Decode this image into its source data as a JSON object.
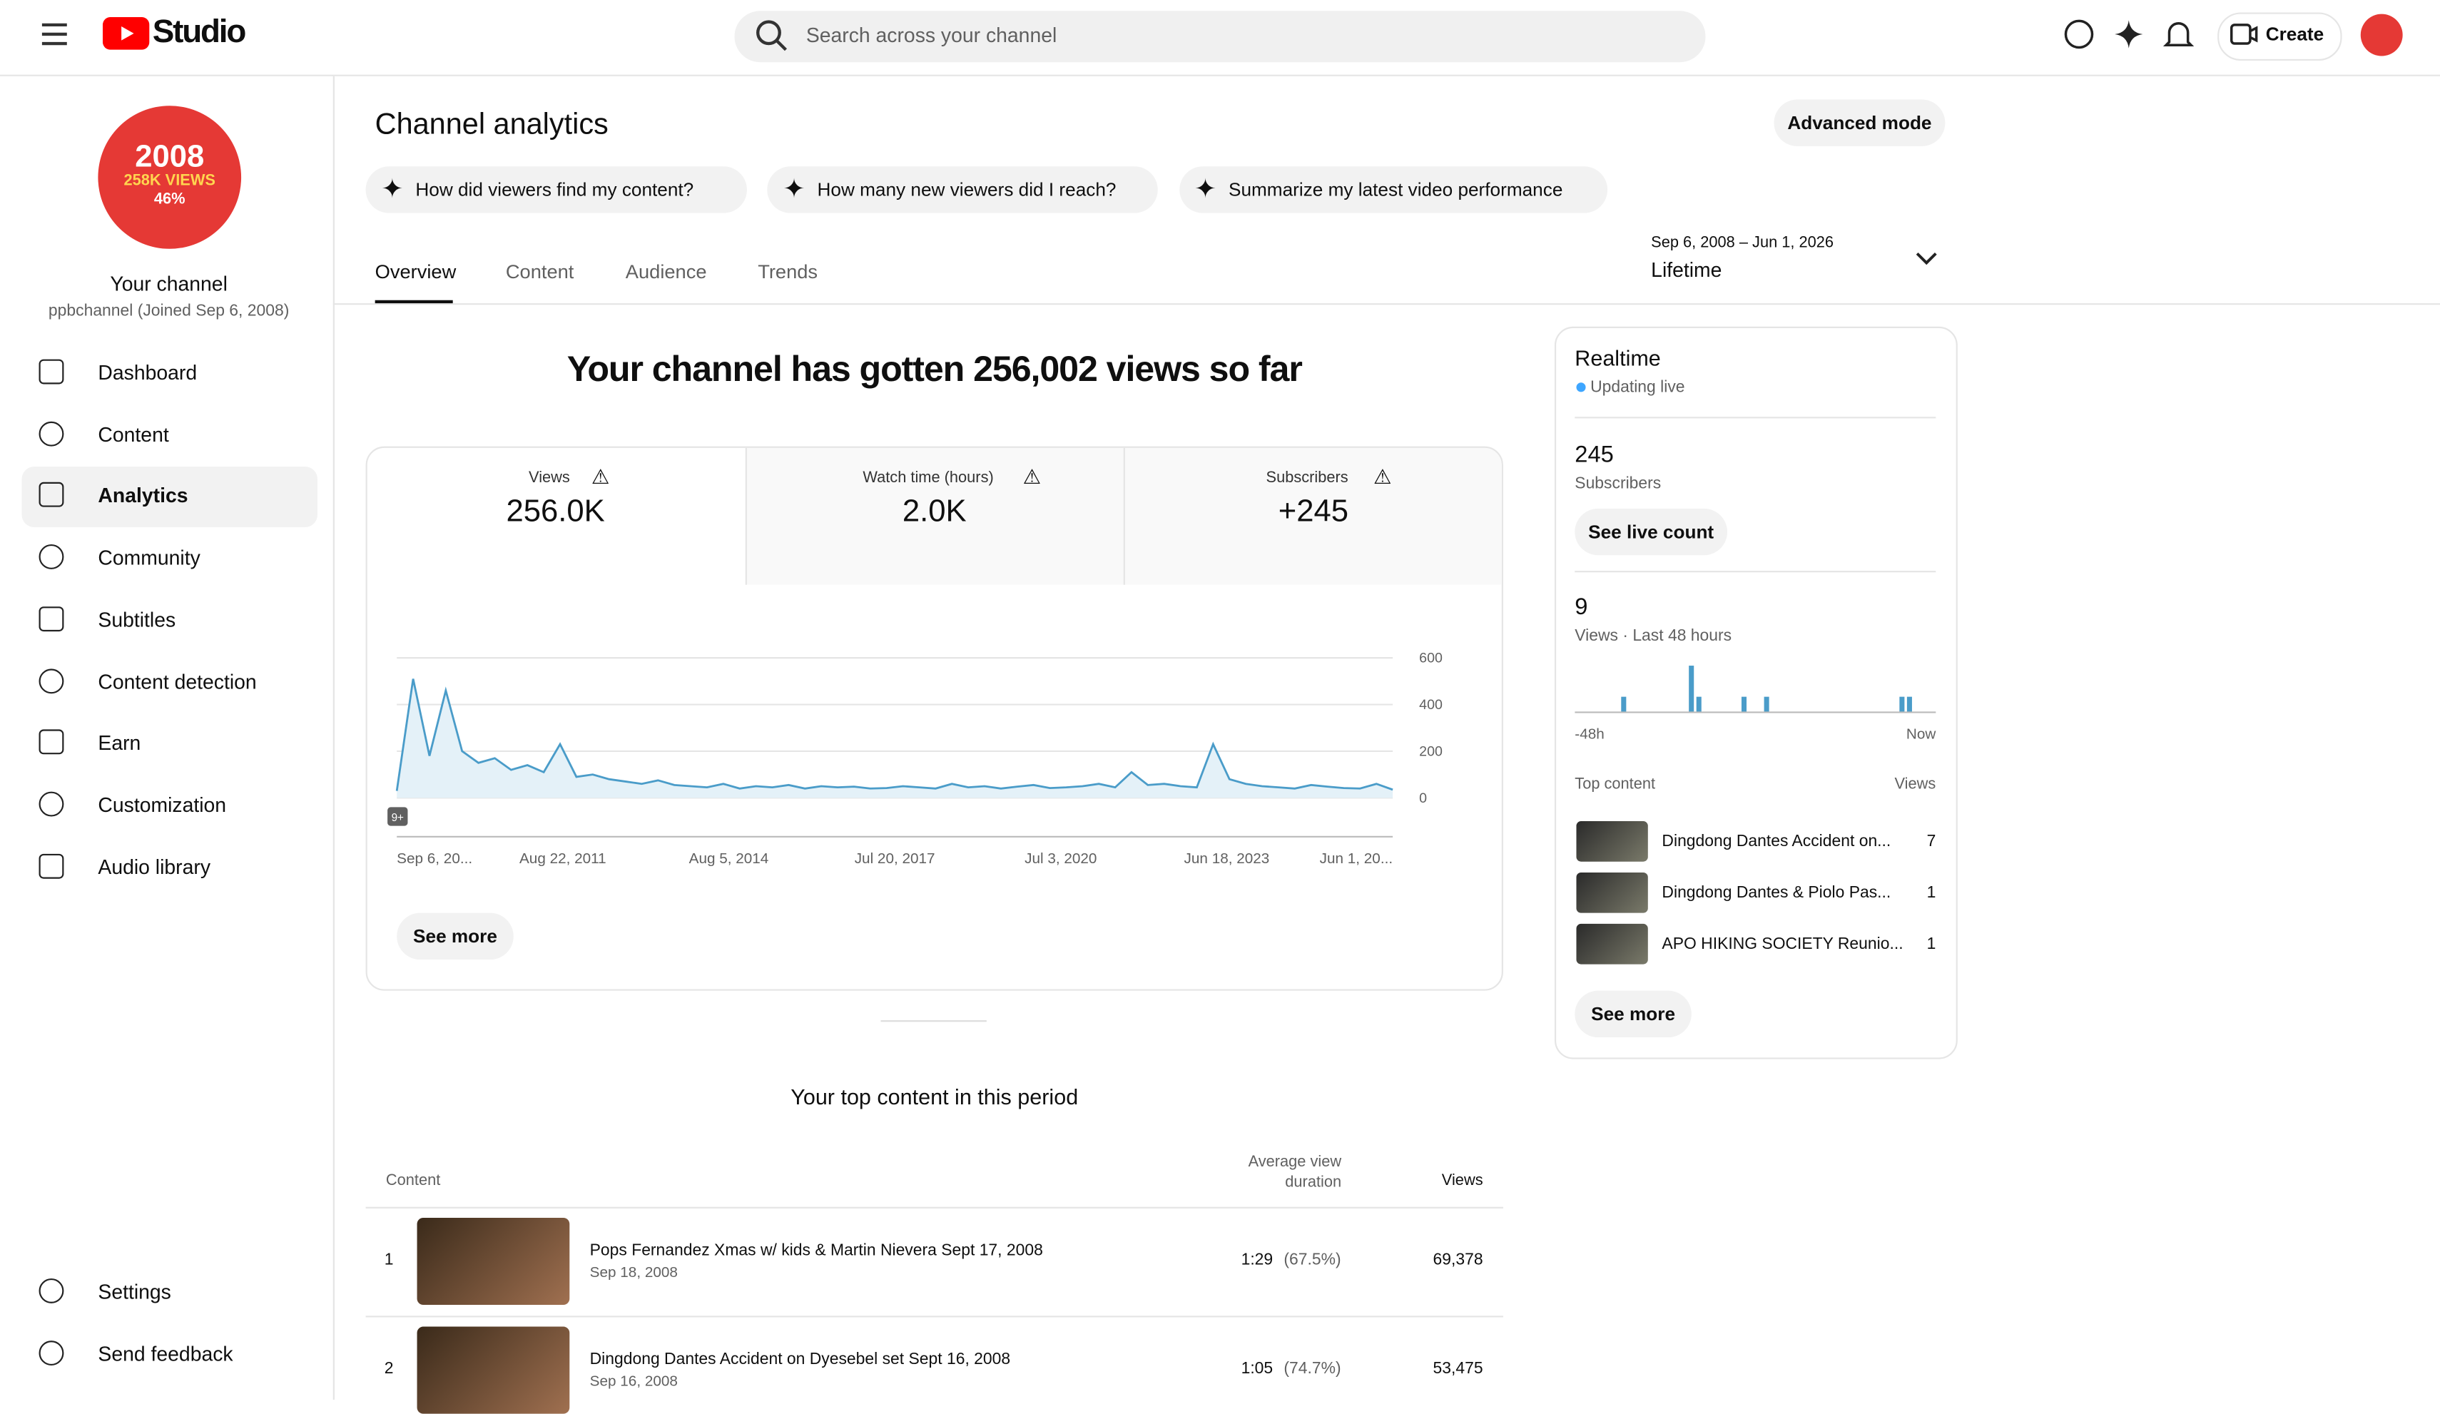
{
  "header": {
    "logo": "Studio",
    "search_placeholder": "Search across your channel",
    "create": "Create"
  },
  "sidebar": {
    "badge": [
      "2008",
      "258K VIEWS",
      "46%"
    ],
    "channel_title": "Your channel",
    "channel_sub": "ppbchannel (Joined Sep 6, 2008)",
    "nav": [
      "Dashboard",
      "Content",
      "Analytics",
      "Community",
      "Subtitles",
      "Content detection",
      "Earn",
      "Customization",
      "Audio library"
    ],
    "bottom": [
      "Settings",
      "Send feedback"
    ]
  },
  "page": {
    "title": "Channel analytics",
    "advanced": "Advanced mode",
    "prompts": [
      "How did viewers find my content?",
      "How many new viewers did I reach?",
      "Summarize my latest video performance"
    ],
    "tabs": [
      "Overview",
      "Content",
      "Audience",
      "Trends"
    ],
    "date_range": "Sep 6, 2008 – Jun 1, 2026",
    "period": "Lifetime",
    "headline": "Your channel has gotten 256,002 views so far",
    "metrics": [
      {
        "label": "Views",
        "value": "256.0K"
      },
      {
        "label": "Watch time (hours)",
        "value": "2.0K"
      },
      {
        "label": "Subscribers",
        "value": "+245"
      }
    ],
    "chart_badge": "9+",
    "see_more": "See more"
  },
  "chart_data": [
    {
      "type": "line",
      "color": "#4a9cc9",
      "ylim": [
        0,
        600
      ],
      "yticks": [
        0,
        200,
        400,
        600
      ],
      "xtick_labels": [
        "Sep 6, 20...",
        "Aug 22, 2011",
        "Aug 5, 2014",
        "Jul 20, 2017",
        "Jul 3, 2020",
        "Jun 18, 2023",
        "Jun 1, 20..."
      ],
      "values": [
        30,
        510,
        180,
        460,
        200,
        150,
        170,
        120,
        140,
        110,
        230,
        90,
        100,
        80,
        70,
        60,
        75,
        55,
        50,
        45,
        60,
        40,
        50,
        45,
        55,
        40,
        50,
        45,
        48,
        40,
        42,
        50,
        45,
        40,
        60,
        45,
        50,
        40,
        48,
        55,
        42,
        45,
        50,
        60,
        45,
        110,
        55,
        60,
        50,
        45,
        230,
        80,
        60,
        50,
        45,
        40,
        55,
        48,
        42,
        40,
        60,
        35
      ]
    },
    {
      "type": "bar",
      "color": "#4a9cc9",
      "ylim": [
        0,
        3
      ],
      "xtick_labels": [
        "-48h",
        "Now"
      ],
      "values": [
        0,
        0,
        0,
        0,
        0,
        0,
        1,
        0,
        0,
        0,
        0,
        0,
        0,
        0,
        0,
        3,
        1,
        0,
        0,
        0,
        0,
        0,
        1,
        0,
        0,
        1,
        0,
        0,
        0,
        0,
        0,
        0,
        0,
        0,
        0,
        0,
        0,
        0,
        0,
        0,
        0,
        0,
        0,
        1,
        1,
        0,
        0,
        0
      ]
    }
  ],
  "realtime": {
    "title": "Realtime",
    "status": "Updating live",
    "subs": "245",
    "subs_label": "Subscribers",
    "live_btn": "See live count",
    "views": "9",
    "views_label": "Views · Last 48 hours",
    "top_label": "Top content",
    "views_col": "Views",
    "items": [
      {
        "title": "Dingdong Dantes Accident on...",
        "views": "7"
      },
      {
        "title": "Dingdong Dantes & Piolo Pas...",
        "views": "1"
      },
      {
        "title": "APO HIKING SOCIETY Reunio...",
        "views": "1"
      }
    ],
    "see_more": "See more"
  },
  "top_content": {
    "title": "Your top content in this period",
    "col_content": "Content",
    "col_avd": "Average view duration",
    "col_views": "Views",
    "rows": [
      {
        "rank": "1",
        "title": "Pops Fernandez Xmas w/ kids & Martin Nievera Sept 17, 2008",
        "date": "Sep 18, 2008",
        "avd": "1:29",
        "pct": "(67.5%)",
        "views": "69,378"
      },
      {
        "rank": "2",
        "title": "Dingdong Dantes Accident on Dyesebel set Sept 16, 2008",
        "date": "Sep 16, 2008",
        "avd": "1:05",
        "pct": "(74.7%)",
        "views": "53,475"
      }
    ]
  }
}
